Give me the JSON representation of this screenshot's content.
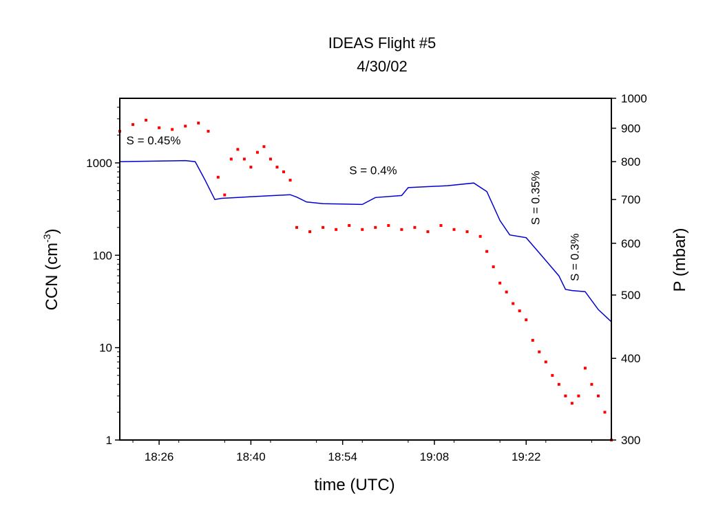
{
  "chart_data": {
    "type": "scatter",
    "title": "IDEAS Flight #5",
    "subtitle": "4/30/02",
    "xlabel": "time (UTC)",
    "ylabel": "CCN (cm-3)",
    "ylabel_main": "CCN (cm",
    "ylabel_sup": "-3",
    "ylabel_end": ")",
    "y2label": "P (mbar)",
    "x_ticks": [
      "18:26",
      "18:40",
      "18:54",
      "19:08",
      "19:22"
    ],
    "x_tick_minutes": [
      26,
      40,
      54,
      68,
      82
    ],
    "xlim_minutes": [
      20,
      95
    ],
    "ylim": [
      1,
      5000
    ],
    "yscale": "log",
    "y_ticks": [
      "1",
      "10",
      "100",
      "1000"
    ],
    "y_tick_values": [
      1,
      10,
      100,
      1000
    ],
    "y2lim": [
      300,
      1000
    ],
    "y2scale": "log",
    "y2_ticks": [
      "300",
      "400",
      "500",
      "600",
      "700",
      "800",
      "900",
      "1000"
    ],
    "y2_tick_values": [
      300,
      400,
      500,
      600,
      700,
      800,
      900,
      1000
    ],
    "grid": false,
    "series": [
      {
        "axis": "left",
        "color": "#ff0000",
        "style": "points",
        "points": [
          [
            20,
            2200
          ],
          [
            22,
            2600
          ],
          [
            24,
            2900
          ],
          [
            26,
            2400
          ],
          [
            28,
            2300
          ],
          [
            30,
            2500
          ],
          [
            32,
            2700
          ],
          [
            33.5,
            2200
          ],
          [
            35,
            700
          ],
          [
            36,
            450
          ],
          [
            37,
            1100
          ],
          [
            38,
            1400
          ],
          [
            39,
            1100
          ],
          [
            40,
            900
          ],
          [
            41,
            1300
          ],
          [
            42,
            1500
          ],
          [
            43,
            1100
          ],
          [
            44,
            900
          ],
          [
            45,
            800
          ],
          [
            46,
            650
          ],
          [
            47,
            200
          ],
          [
            49,
            180
          ],
          [
            51,
            200
          ],
          [
            53,
            190
          ],
          [
            55,
            210
          ],
          [
            57,
            190
          ],
          [
            59,
            200
          ],
          [
            61,
            210
          ],
          [
            63,
            190
          ],
          [
            65,
            200
          ],
          [
            67,
            180
          ],
          [
            69,
            210
          ],
          [
            71,
            190
          ],
          [
            73,
            180
          ],
          [
            75,
            160
          ],
          [
            76,
            110
          ],
          [
            77,
            75
          ],
          [
            78,
            50
          ],
          [
            79,
            40
          ],
          [
            80,
            30
          ],
          [
            81,
            25
          ],
          [
            82,
            20
          ],
          [
            83,
            12
          ],
          [
            84,
            9
          ],
          [
            85,
            7
          ],
          [
            86,
            5
          ],
          [
            87,
            4
          ],
          [
            88,
            3
          ],
          [
            89,
            2.5
          ],
          [
            90,
            3
          ],
          [
            91,
            6
          ],
          [
            92,
            4
          ],
          [
            93,
            3
          ],
          [
            94,
            2
          ],
          [
            95,
            1
          ]
        ]
      },
      {
        "axis": "right",
        "color": "#0000cc",
        "style": "line",
        "points": [
          [
            20,
            800
          ],
          [
            30,
            803
          ],
          [
            31.5,
            800
          ],
          [
            33,
            750
          ],
          [
            34.5,
            700
          ],
          [
            35.5,
            703
          ],
          [
            38,
            705
          ],
          [
            40,
            707
          ],
          [
            46,
            712
          ],
          [
            47,
            706
          ],
          [
            48.5,
            694
          ],
          [
            51,
            690
          ],
          [
            57,
            688
          ],
          [
            59,
            705
          ],
          [
            63,
            710
          ],
          [
            64,
            730
          ],
          [
            70,
            735
          ],
          [
            74,
            742
          ],
          [
            76,
            720
          ],
          [
            78,
            650
          ],
          [
            79.5,
            618
          ],
          [
            82,
            612
          ],
          [
            84,
            580
          ],
          [
            87,
            535
          ],
          [
            88,
            510
          ],
          [
            89,
            508
          ],
          [
            91,
            506
          ],
          [
            93,
            475
          ],
          [
            95,
            455
          ]
        ]
      }
    ],
    "annotations": [
      {
        "text": "S = 0.45%",
        "x": 21,
        "y": 850,
        "axis": "right",
        "rotate": false
      },
      {
        "text": "S = 0.4%",
        "x": 55,
        "y": 765,
        "axis": "right",
        "rotate": false
      },
      {
        "text": "S = 0.35%",
        "x": 84,
        "y": 640,
        "axis": "right",
        "rotate": true
      },
      {
        "text": "S = 0.3%",
        "x": 90,
        "y": 525,
        "axis": "right",
        "rotate": true
      }
    ]
  }
}
